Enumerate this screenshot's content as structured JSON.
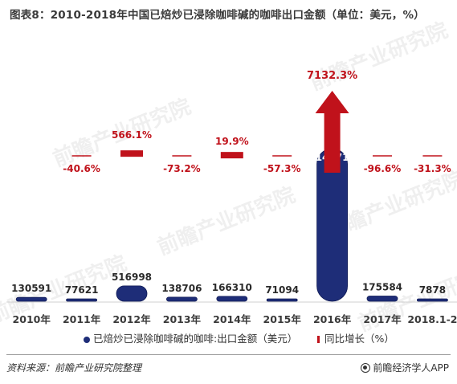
{
  "title": "图表8：2010-2018年中国已焙炒已浸除咖啡碱的咖啡出口金额（单位：美元，%）",
  "watermark_text": "前瞻产业研究院",
  "source": "资料来源：前瞻产业研究院整理",
  "brand": "前瞻经济学人APP",
  "colors": {
    "bar": "#1e2d78",
    "bar_edge": "#0f1a55",
    "growth": "#c0121b",
    "growth_dash": "#c0121b",
    "axis": "#cfcfcf"
  },
  "chart_data": {
    "type": "bar",
    "categories": [
      "2010年",
      "2011年",
      "2012年",
      "2013年",
      "2014年",
      "2015年",
      "2016年",
      "2017年",
      "2018.1-2"
    ],
    "series": [
      {
        "name": "已焙炒已浸除咖啡碱的咖啡:出口金额（美元）",
        "type": "bar",
        "values": [
          130591,
          77621,
          516998,
          138706,
          166310,
          71094,
          5141713,
          175584,
          7878
        ],
        "labels": [
          "130591",
          "77621",
          "516998",
          "138706",
          "166310",
          "71094",
          "5141713",
          "175584",
          "7878"
        ]
      },
      {
        "name": "同比增长（%）",
        "type": "growth",
        "values": [
          null,
          -40.6,
          566.1,
          -73.2,
          19.9,
          -57.3,
          7132.3,
          -96.6,
          -31.3
        ],
        "labels": [
          "",
          "-40.6%",
          "566.1%",
          "-73.2%",
          "19.9%",
          "-57.3%",
          "7132.3%",
          "-96.6%",
          "-31.3%"
        ]
      }
    ],
    "xlabel": "",
    "ylabel": "",
    "legend_position": "bottom",
    "grid": false
  }
}
